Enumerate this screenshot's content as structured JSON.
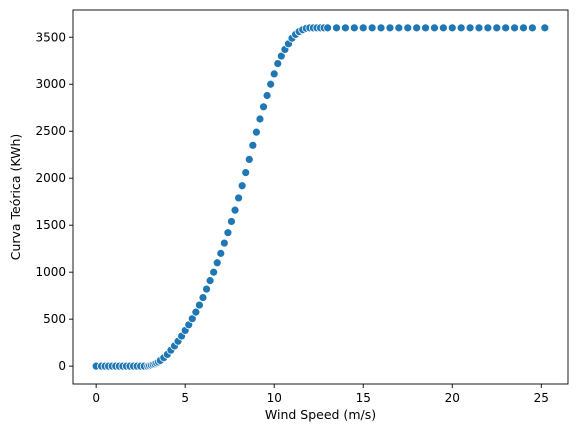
{
  "chart_data": {
    "type": "scatter",
    "title": "",
    "xlabel": "Wind Speed (m/s)",
    "ylabel": "Curva Teórica (KWh)",
    "xlim": [
      -1.3,
      26.5
    ],
    "ylim": [
      -190,
      3790
    ],
    "x_ticks": [
      0,
      5,
      10,
      15,
      20,
      25
    ],
    "y_ticks": [
      0,
      500,
      1000,
      1500,
      2000,
      2500,
      3000,
      3500
    ],
    "grid": false,
    "legend": "none",
    "colors": {
      "marker": "#1f77b4",
      "marker_edge": "#ffffff",
      "axis": "#000000"
    },
    "series": [
      {
        "x": [
          0.0,
          0.3,
          0.5,
          0.7,
          0.9,
          1.1,
          1.3,
          1.5,
          1.7,
          1.9,
          2.1,
          2.3,
          2.5,
          2.7,
          2.9,
          3.0,
          3.1,
          3.2,
          3.3,
          3.4,
          3.5,
          3.6,
          3.8,
          4.0,
          4.2,
          4.4,
          4.6,
          4.8,
          5.0,
          5.2,
          5.4,
          5.6,
          5.8,
          6.0,
          6.2,
          6.4,
          6.6,
          6.8,
          7.0,
          7.2,
          7.4,
          7.6,
          7.8,
          8.0,
          8.2,
          8.4,
          8.6,
          8.8,
          9.0,
          9.2,
          9.4,
          9.6,
          9.8,
          10.0,
          10.2,
          10.4,
          10.6,
          10.8,
          11.0,
          11.2,
          11.4,
          11.6,
          11.8,
          12.0,
          12.2,
          12.4,
          12.6,
          12.8,
          13.0,
          13.5,
          14.0,
          14.5,
          15.0,
          15.5,
          16.0,
          16.5,
          17.0,
          17.5,
          18.0,
          18.5,
          19.0,
          19.5,
          20.0,
          20.5,
          21.0,
          21.5,
          22.0,
          22.5,
          23.0,
          23.5,
          24.0,
          24.5,
          25.2
        ],
        "y": [
          0,
          0,
          0,
          0,
          0,
          0,
          0,
          0,
          0,
          0,
          0,
          0,
          0,
          0,
          0,
          5,
          10,
          18,
          25,
          35,
          45,
          60,
          90,
          125,
          170,
          215,
          265,
          320,
          380,
          440,
          505,
          575,
          650,
          730,
          820,
          910,
          1000,
          1100,
          1200,
          1310,
          1420,
          1540,
          1660,
          1790,
          1920,
          2060,
          2200,
          2350,
          2490,
          2630,
          2760,
          2880,
          3000,
          3110,
          3220,
          3300,
          3370,
          3430,
          3490,
          3530,
          3560,
          3580,
          3595,
          3600,
          3600,
          3600,
          3600,
          3600,
          3600,
          3600,
          3600,
          3600,
          3600,
          3600,
          3600,
          3600,
          3600,
          3600,
          3600,
          3600,
          3600,
          3600,
          3600,
          3600,
          3600,
          3600,
          3600,
          3600,
          3600,
          3600,
          3600,
          3600,
          3600
        ]
      }
    ]
  }
}
